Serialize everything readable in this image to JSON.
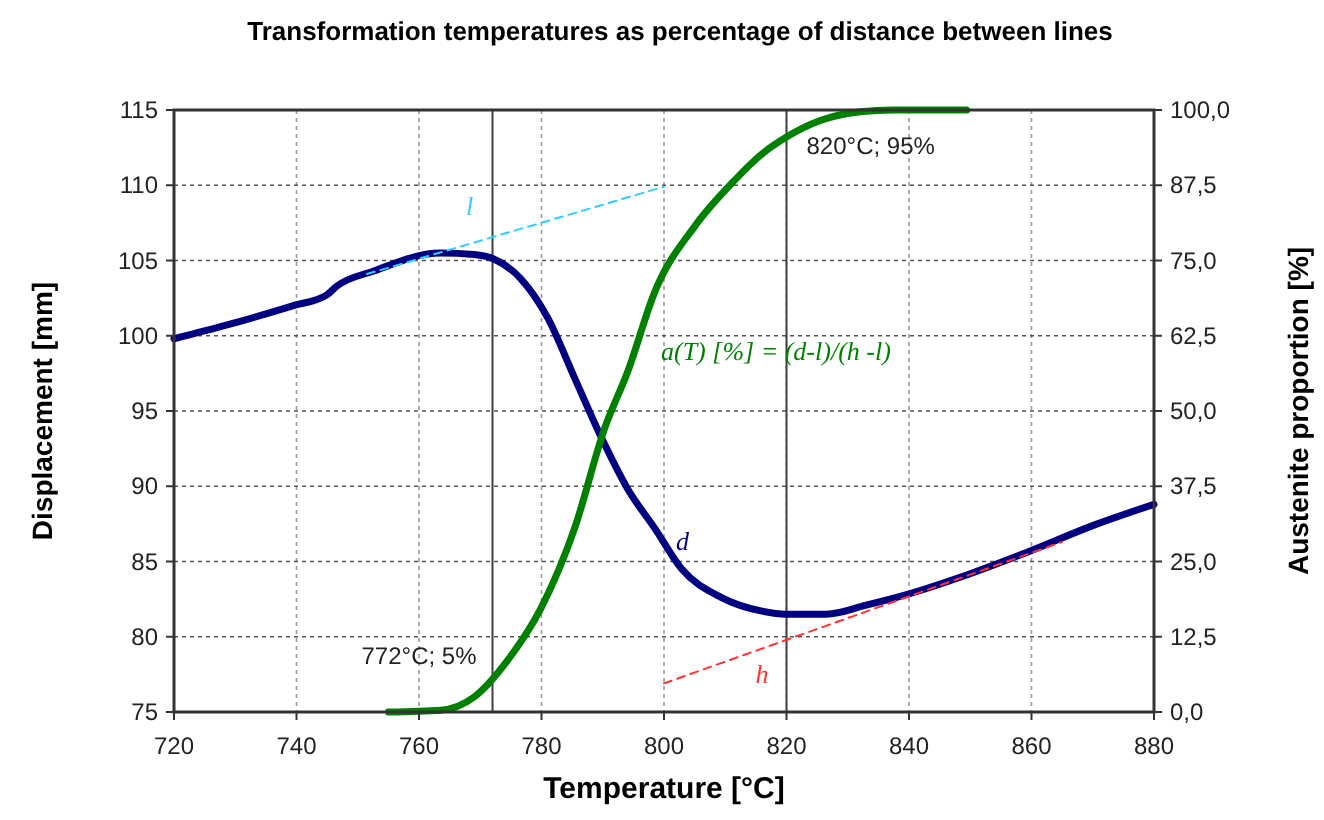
{
  "chart_data": {
    "type": "line",
    "title": "Transformation temperatures as percentage of distance between lines",
    "xlabel": "Temperature [°C]",
    "ylabel": "Displacement  [mm]",
    "y2label": "Austenite  proportion  [%]",
    "xlim": [
      720,
      880
    ],
    "xticks": [
      720,
      740,
      760,
      780,
      800,
      820,
      840,
      860,
      880
    ],
    "ylim": [
      75,
      115
    ],
    "yticks": [
      75,
      80,
      85,
      90,
      95,
      100,
      105,
      110,
      115
    ],
    "y2lim": [
      0,
      100
    ],
    "y2ticks": [
      {
        "value": 0,
        "label": "0,0"
      },
      {
        "value": 12.5,
        "label": "12,5"
      },
      {
        "value": 25,
        "label": "25,0"
      },
      {
        "value": 37.5,
        "label": "37,5"
      },
      {
        "value": 50,
        "label": "50,0"
      },
      {
        "value": 62.5,
        "label": "62,5"
      },
      {
        "value": 75,
        "label": "75,0"
      },
      {
        "value": 87.5,
        "label": "87,5"
      },
      {
        "value": 100,
        "label": "100,0"
      }
    ],
    "grid": true,
    "marker": "none",
    "series": [
      {
        "name": "d",
        "color": "#000080",
        "x": [
          720,
          728.5,
          739.5,
          744.9,
          746.6,
          752.6,
          763.5,
          769,
          772.2,
          776.6,
          781,
          785.4,
          789.7,
          794.1,
          798.5,
          802.9,
          809.4,
          816,
          820,
          826.5,
          833,
          839.6,
          849.4,
          859.2,
          870.1,
          880
        ],
        "values": [
          99.8,
          100.7,
          102.0,
          102.7,
          103.3,
          104.3,
          105.5,
          105.4,
          105.1,
          103.8,
          101.2,
          97.2,
          93.3,
          89.8,
          87.2,
          84.5,
          82.6,
          81.7,
          81.5,
          81.5,
          82.1,
          82.8,
          84.1,
          85.6,
          87.4,
          88.8
        ]
      },
      {
        "name": "l",
        "color": "#33ccff",
        "line_style": "dashed",
        "x": [
          751.5,
          800
        ],
        "values": [
          104.1,
          109.9
        ]
      },
      {
        "name": "h",
        "color": "#ff3333",
        "line_style": "dashed",
        "x": [
          800,
          865
        ],
        "values": [
          76.9,
          86.3
        ]
      },
      {
        "name": "a(T) [%] = (d-l)/(h -l)",
        "color": "#008000",
        "axis": "y2",
        "x": [
          755,
          763.5,
          769,
          774.4,
          779.9,
          785.4,
          790.3,
          794.1,
          798.5,
          805.1,
          811.6,
          816,
          820,
          825.4,
          832,
          837.4,
          849.4
        ],
        "values": [
          0,
          0.3,
          2.5,
          8.5,
          17.2,
          30.5,
          47.1,
          56.6,
          69.8,
          80.8,
          88.4,
          92.7,
          95.5,
          98.2,
          99.7,
          100,
          100
        ]
      }
    ],
    "ref_lines": [
      {
        "axis": "x",
        "value": 772,
        "label": "772°C; 5%",
        "color": "#404040"
      },
      {
        "axis": "x",
        "value": 820,
        "label": "820°C; 95%",
        "color": "#404040"
      }
    ]
  }
}
